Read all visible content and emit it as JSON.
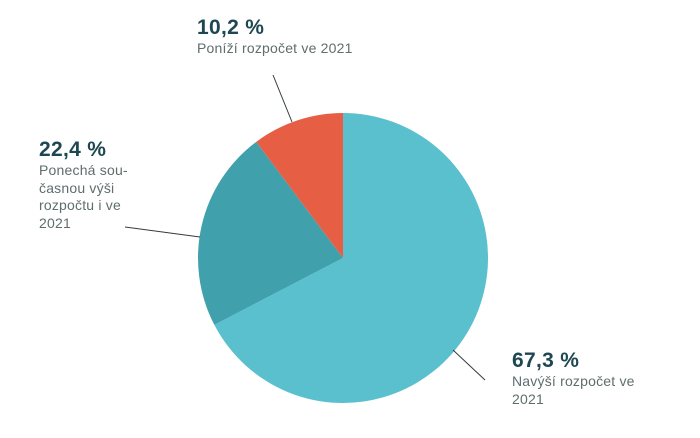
{
  "colors": {
    "background": "#ffffff",
    "value_text": "#1e4752",
    "desc_text": "#5f6d6d",
    "leader_line": "#333b3b"
  },
  "labels": {
    "ponizi": {
      "value": "10,2 %",
      "desc_lines": [
        "Poníží rozpočet ve 2021"
      ]
    },
    "ponecha": {
      "value": "22,4 %",
      "desc_lines": [
        "Ponechá sou-",
        "časnou výši",
        "rozpočtu i ve",
        "2021"
      ]
    },
    "navysi": {
      "value": "67,3 %",
      "desc_lines": [
        "Navýší rozpočet ve",
        "2021"
      ]
    }
  },
  "chart_data": {
    "type": "pie",
    "title": "",
    "start_angle_deg": 0,
    "direction": "clockwise",
    "slices": [
      {
        "id": "navysi",
        "label": "Navýší rozpočet ve 2021",
        "value": 67.3,
        "value_label": "67,3 %",
        "color": "#5ac0ce"
      },
      {
        "id": "ponecha",
        "label": "Ponechá současnou výši rozpočtu i ve 2021",
        "value": 22.4,
        "value_label": "22,4 %",
        "color": "#40a1ad"
      },
      {
        "id": "ponizi",
        "label": "Poníží rozpočet ve 2021",
        "value": 10.2,
        "value_label": "10,2 %",
        "color": "#e65e43"
      }
    ]
  }
}
